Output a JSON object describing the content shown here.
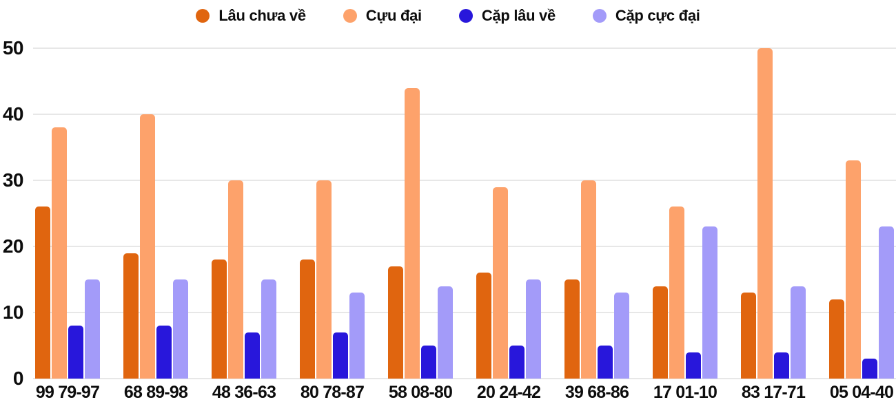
{
  "chart_data": {
    "type": "bar",
    "title": "",
    "xlabel": "",
    "ylabel": "",
    "categories": [
      "99 79-97",
      "68 89-98",
      "48 36-63",
      "80 78-87",
      "58 08-80",
      "20 24-42",
      "39 68-86",
      "17 01-10",
      "83 17-71",
      "05 04-40"
    ],
    "series": [
      {
        "name": "Lâu chưa về",
        "color": "#e0650f",
        "values": [
          26,
          19,
          18,
          18,
          17,
          16,
          15,
          14,
          13,
          12
        ]
      },
      {
        "name": "Cựu đại",
        "color": "#fda26b",
        "values": [
          38,
          40,
          30,
          30,
          44,
          29,
          30,
          26,
          50,
          33
        ]
      },
      {
        "name": "Cặp lâu về",
        "color": "#2817db",
        "values": [
          8,
          8,
          7,
          7,
          5,
          5,
          5,
          4,
          4,
          3
        ]
      },
      {
        "name": "Cặp cực đại",
        "color": "#a39bf9",
        "values": [
          15,
          15,
          15,
          13,
          14,
          15,
          13,
          23,
          14,
          23
        ]
      }
    ],
    "ylim": [
      0,
      50
    ],
    "yticks": [
      0,
      10,
      20,
      30,
      40,
      50
    ],
    "grid": true,
    "legend_position": "top-center"
  },
  "colors": {
    "background": "#ffffff",
    "gridline": "#e7e7e7",
    "text": "#0d0d0d"
  }
}
